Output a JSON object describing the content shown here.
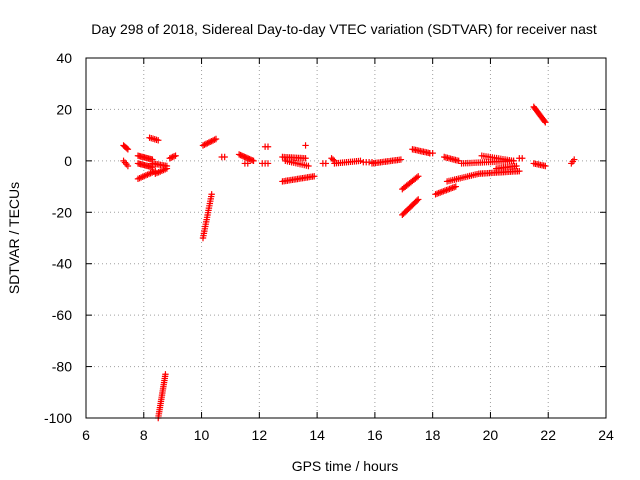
{
  "chart_data": {
    "type": "scatter",
    "title": "Day 298 of 2018, Sidereal Day-to-day VTEC variation (SDTVAR) for receiver nast",
    "xlabel": "GPS time / hours",
    "ylabel": "SDTVAR / TECUs",
    "xlim": [
      6,
      24
    ],
    "ylim": [
      -100,
      40
    ],
    "xticks": [
      6,
      8,
      10,
      12,
      14,
      16,
      18,
      20,
      22,
      24
    ],
    "yticks": [
      -100,
      -80,
      -60,
      -40,
      -20,
      0,
      20,
      40
    ],
    "xtick_labels": [
      "6",
      "8",
      "10",
      "12",
      "14",
      "16",
      "18",
      "20",
      "22",
      "24"
    ],
    "ytick_labels": [
      "-100",
      "-80",
      "-60",
      "-40",
      "-20",
      "0",
      "20",
      "40"
    ],
    "grid": true,
    "marker": "plus",
    "color": "#ff0000",
    "segments": [
      {
        "x0": 7.3,
        "x1": 7.45,
        "y0": 6,
        "y1": 4.5,
        "n": 5
      },
      {
        "x0": 7.3,
        "x1": 7.45,
        "y0": 0,
        "y1": -2,
        "n": 4
      },
      {
        "x0": 7.8,
        "x1": 8.3,
        "y0": 2,
        "y1": 0.5,
        "n": 12
      },
      {
        "x0": 7.8,
        "x1": 8.3,
        "y0": -1,
        "y1": -2.5,
        "n": 12
      },
      {
        "x0": 7.8,
        "x1": 8.4,
        "y0": -7,
        "y1": -4,
        "n": 12
      },
      {
        "x0": 8.2,
        "x1": 8.5,
        "y0": 9,
        "y1": 8,
        "n": 6
      },
      {
        "x0": 8.3,
        "x1": 8.8,
        "y0": -1,
        "y1": -2,
        "n": 10
      },
      {
        "x0": 8.4,
        "x1": 8.8,
        "y0": -5,
        "y1": -3,
        "n": 8
      },
      {
        "x0": 8.5,
        "x1": 8.75,
        "y0": -100,
        "y1": -83,
        "n": 22
      },
      {
        "x0": 8.9,
        "x1": 9.1,
        "y0": 1,
        "y1": 2,
        "n": 5
      },
      {
        "x0": 10.05,
        "x1": 10.35,
        "y0": -30,
        "y1": -13,
        "n": 20
      },
      {
        "x0": 10.05,
        "x1": 10.5,
        "y0": 6,
        "y1": 8.5,
        "n": 10
      },
      {
        "x0": 10.7,
        "x1": 10.8,
        "y0": 1.5,
        "y1": 1.5,
        "n": 2
      },
      {
        "x0": 11.3,
        "x1": 11.8,
        "y0": 2.5,
        "y1": 0,
        "n": 12
      },
      {
        "x0": 11.5,
        "x1": 11.6,
        "y0": -1,
        "y1": -1,
        "n": 2
      },
      {
        "x0": 12.1,
        "x1": 12.3,
        "y0": -1,
        "y1": -1,
        "n": 3
      },
      {
        "x0": 12.2,
        "x1": 12.3,
        "y0": 5.5,
        "y1": 5.5,
        "n": 2
      },
      {
        "x0": 12.8,
        "x1": 13.6,
        "y0": 1.5,
        "y1": 1,
        "n": 14
      },
      {
        "x0": 12.9,
        "x1": 13.7,
        "y0": 0,
        "y1": -2,
        "n": 12
      },
      {
        "x0": 12.8,
        "x1": 13.9,
        "y0": -8,
        "y1": -6,
        "n": 20
      },
      {
        "x0": 13.6,
        "x1": 13.6,
        "y0": 6,
        "y1": 6,
        "n": 1
      },
      {
        "x0": 14.2,
        "x1": 14.3,
        "y0": -1,
        "y1": -1,
        "n": 2
      },
      {
        "x0": 14.5,
        "x1": 14.6,
        "y0": 1,
        "y1": 0,
        "n": 3
      },
      {
        "x0": 14.6,
        "x1": 15.5,
        "y0": -1,
        "y1": 0,
        "n": 14
      },
      {
        "x0": 15.6,
        "x1": 15.9,
        "y0": -0.5,
        "y1": -0.5,
        "n": 4
      },
      {
        "x0": 15.9,
        "x1": 16.9,
        "y0": -1,
        "y1": 0.5,
        "n": 18
      },
      {
        "x0": 16.95,
        "x1": 17.5,
        "y0": -21,
        "y1": -15,
        "n": 14
      },
      {
        "x0": 16.95,
        "x1": 17.5,
        "y0": -11,
        "y1": -6,
        "n": 12
      },
      {
        "x0": 17.3,
        "x1": 17.9,
        "y0": 4.5,
        "y1": 3,
        "n": 12
      },
      {
        "x0": 17.9,
        "x1": 18.0,
        "y0": 3,
        "y1": 3,
        "n": 2
      },
      {
        "x0": 18.1,
        "x1": 18.8,
        "y0": -13,
        "y1": -10,
        "n": 14
      },
      {
        "x0": 18.4,
        "x1": 18.9,
        "y0": 1.5,
        "y1": 0,
        "n": 10
      },
      {
        "x0": 18.5,
        "x1": 19.6,
        "y0": -8,
        "y1": -5,
        "n": 18
      },
      {
        "x0": 19.6,
        "x1": 21.0,
        "y0": -5,
        "y1": -4,
        "n": 24
      },
      {
        "x0": 19.0,
        "x1": 20.8,
        "y0": -1,
        "y1": 0,
        "n": 26
      },
      {
        "x0": 19.7,
        "x1": 20.8,
        "y0": 2,
        "y1": 0,
        "n": 16
      },
      {
        "x0": 20.2,
        "x1": 20.9,
        "y0": -3,
        "y1": -2,
        "n": 12
      },
      {
        "x0": 21.0,
        "x1": 21.1,
        "y0": 1,
        "y1": 1,
        "n": 2
      },
      {
        "x0": 21.5,
        "x1": 21.9,
        "y0": -1,
        "y1": -2,
        "n": 8
      },
      {
        "x0": 21.5,
        "x1": 21.9,
        "y0": 21,
        "y1": 15,
        "n": 14
      },
      {
        "x0": 22.8,
        "x1": 22.9,
        "y0": -1,
        "y1": 0.5,
        "n": 3
      }
    ]
  }
}
